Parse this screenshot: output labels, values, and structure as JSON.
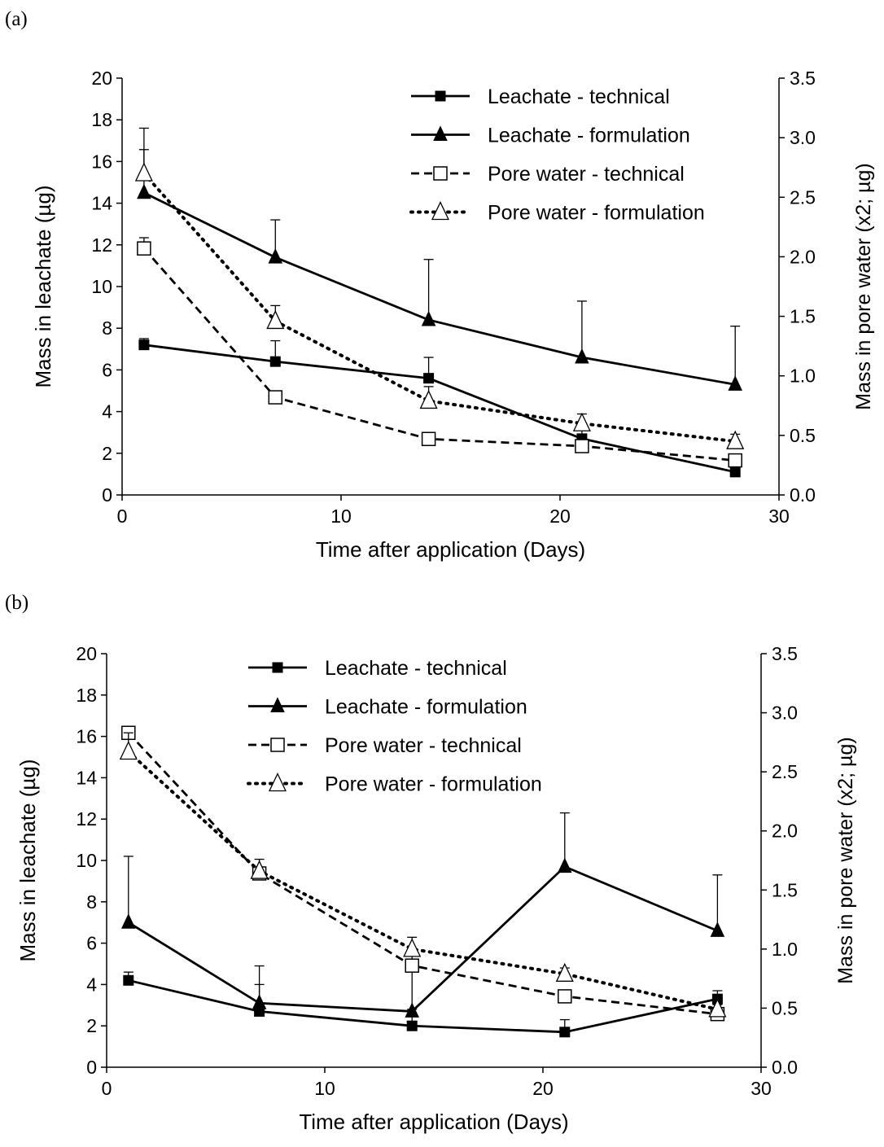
{
  "panels": [
    {
      "label": "(a)"
    },
    {
      "label": "(b)"
    }
  ],
  "chart_data": [
    {
      "type": "line",
      "panel_label": "(a)",
      "xlabel": "Time after application (Days)",
      "ylabel": "Mass in leachate (µg)",
      "y2label": "Mass in pore water (x2; µg)",
      "xlim": [
        0,
        30
      ],
      "ylim": [
        0,
        20
      ],
      "y2lim": [
        0,
        3.5
      ],
      "xticks": [
        "0",
        "10",
        "20",
        "30"
      ],
      "yticks": [
        "0",
        "2",
        "4",
        "6",
        "8",
        "10",
        "12",
        "14",
        "16",
        "18",
        "20"
      ],
      "y2ticks": [
        "0.0",
        "0.5",
        "1.0",
        "1.5",
        "2.0",
        "2.5",
        "3.0",
        "3.5"
      ],
      "grid": false,
      "legend_position": "top-right",
      "series": [
        {
          "name": "Leachate - technical",
          "axis": "left",
          "line": "solid",
          "marker": "square-filled",
          "x": [
            1,
            7,
            14,
            21,
            28
          ],
          "y": [
            7.2,
            6.4,
            5.6,
            2.7,
            1.1
          ],
          "err": [
            0.3,
            1.0,
            1.0,
            0.6,
            0.4
          ]
        },
        {
          "name": "Leachate - formulation",
          "axis": "left",
          "line": "solid",
          "marker": "triangle-filled",
          "x": [
            1,
            7,
            14,
            21,
            28
          ],
          "y": [
            14.5,
            11.4,
            8.4,
            6.6,
            5.3
          ],
          "err": [
            3.1,
            1.8,
            2.9,
            2.7,
            2.8
          ]
        },
        {
          "name": "Pore water - technical",
          "axis": "right",
          "line": "dashed",
          "marker": "square-open",
          "x": [
            1,
            7,
            14,
            21,
            28
          ],
          "y": [
            2.07,
            0.82,
            0.47,
            0.41,
            0.29
          ],
          "err": [
            0.09,
            0.02,
            0.02,
            0.03,
            0.04
          ]
        },
        {
          "name": "Pore water - formulation",
          "axis": "right",
          "line": "dotted",
          "marker": "triangle-open",
          "x": [
            1,
            7,
            14,
            21,
            28
          ],
          "y": [
            2.7,
            1.46,
            0.79,
            0.6,
            0.45
          ],
          "err": [
            0.2,
            0.13,
            0.12,
            0.08,
            0.06
          ]
        }
      ]
    },
    {
      "type": "line",
      "panel_label": "(b)",
      "xlabel": "Time after application (Days)",
      "ylabel": "Mass in leachate (µg)",
      "y2label": "Mass in pore water (x2; µg)",
      "xlim": [
        0,
        30
      ],
      "ylim": [
        0,
        20
      ],
      "y2lim": [
        0,
        3.5
      ],
      "xticks": [
        "0",
        "10",
        "20",
        "30"
      ],
      "yticks": [
        "0",
        "2",
        "4",
        "6",
        "8",
        "10",
        "12",
        "14",
        "16",
        "18",
        "20"
      ],
      "y2ticks": [
        "0.0",
        "0.5",
        "1.0",
        "1.5",
        "2.0",
        "2.5",
        "3.0",
        "3.5"
      ],
      "grid": false,
      "legend_position": "top-center",
      "series": [
        {
          "name": "Leachate - technical",
          "axis": "left",
          "line": "solid",
          "marker": "square-filled",
          "x": [
            1,
            7,
            14,
            21,
            28
          ],
          "y": [
            4.2,
            2.7,
            2.0,
            1.7,
            3.3
          ],
          "err": [
            0.4,
            1.3,
            0.8,
            0.6,
            0.4
          ]
        },
        {
          "name": "Leachate - formulation",
          "axis": "left",
          "line": "solid",
          "marker": "triangle-filled",
          "x": [
            1,
            7,
            14,
            21,
            28
          ],
          "y": [
            7.0,
            3.1,
            2.7,
            9.7,
            6.6
          ],
          "err": [
            3.2,
            1.8,
            2.7,
            2.6,
            2.7
          ]
        },
        {
          "name": "Pore water - technical",
          "axis": "right",
          "line": "dashed",
          "marker": "square-open",
          "x": [
            1,
            7,
            14,
            21,
            28
          ],
          "y": [
            2.83,
            1.64,
            0.86,
            0.6,
            0.45
          ],
          "err": [
            0.03,
            0.05,
            0.05,
            0.03,
            0.03
          ]
        },
        {
          "name": "Pore water - formulation",
          "axis": "right",
          "line": "dotted",
          "marker": "triangle-open",
          "x": [
            1,
            7,
            14,
            21,
            28
          ],
          "y": [
            2.67,
            1.66,
            1.0,
            0.79,
            0.49
          ],
          "err": [
            0.16,
            0.1,
            0.1,
            0.05,
            0.04
          ]
        }
      ]
    }
  ]
}
